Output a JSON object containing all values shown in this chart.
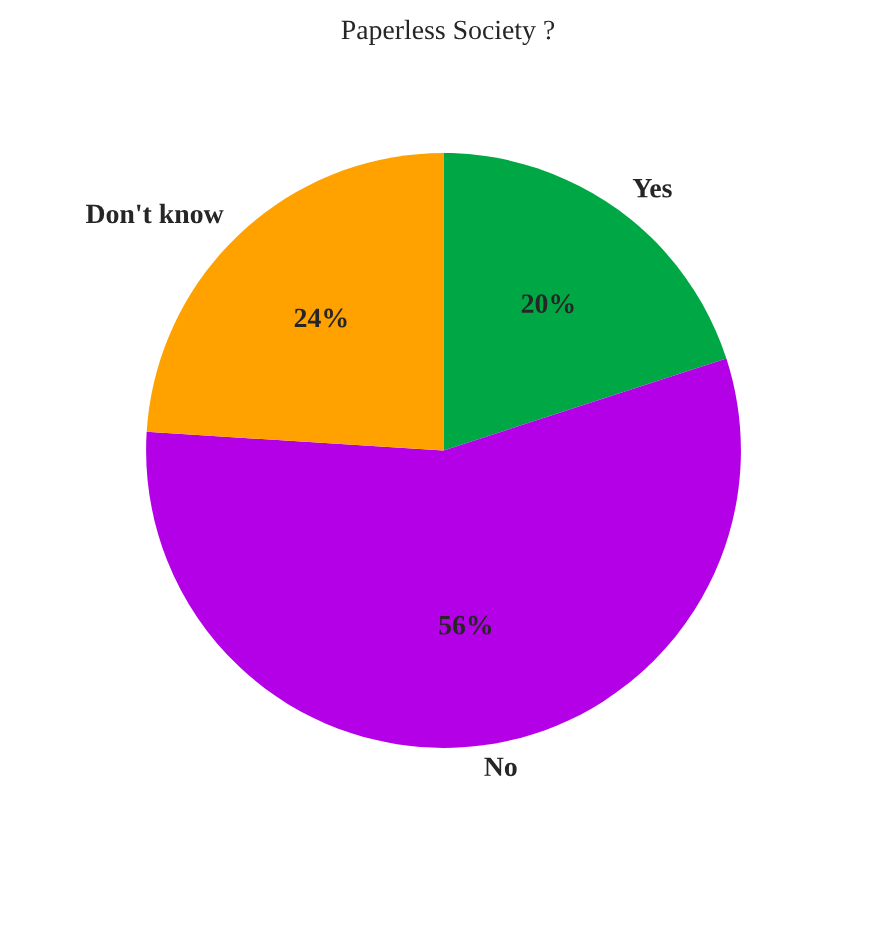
{
  "chart_data": {
    "type": "pie",
    "title": "Paperless Society ?",
    "categories": [
      "Yes",
      "No",
      "Don't know"
    ],
    "values": [
      20,
      56,
      24
    ],
    "value_labels": [
      "20%",
      "56%",
      "24%"
    ],
    "colors": [
      "#00a845",
      "#b400e6",
      "#ffa200"
    ]
  }
}
